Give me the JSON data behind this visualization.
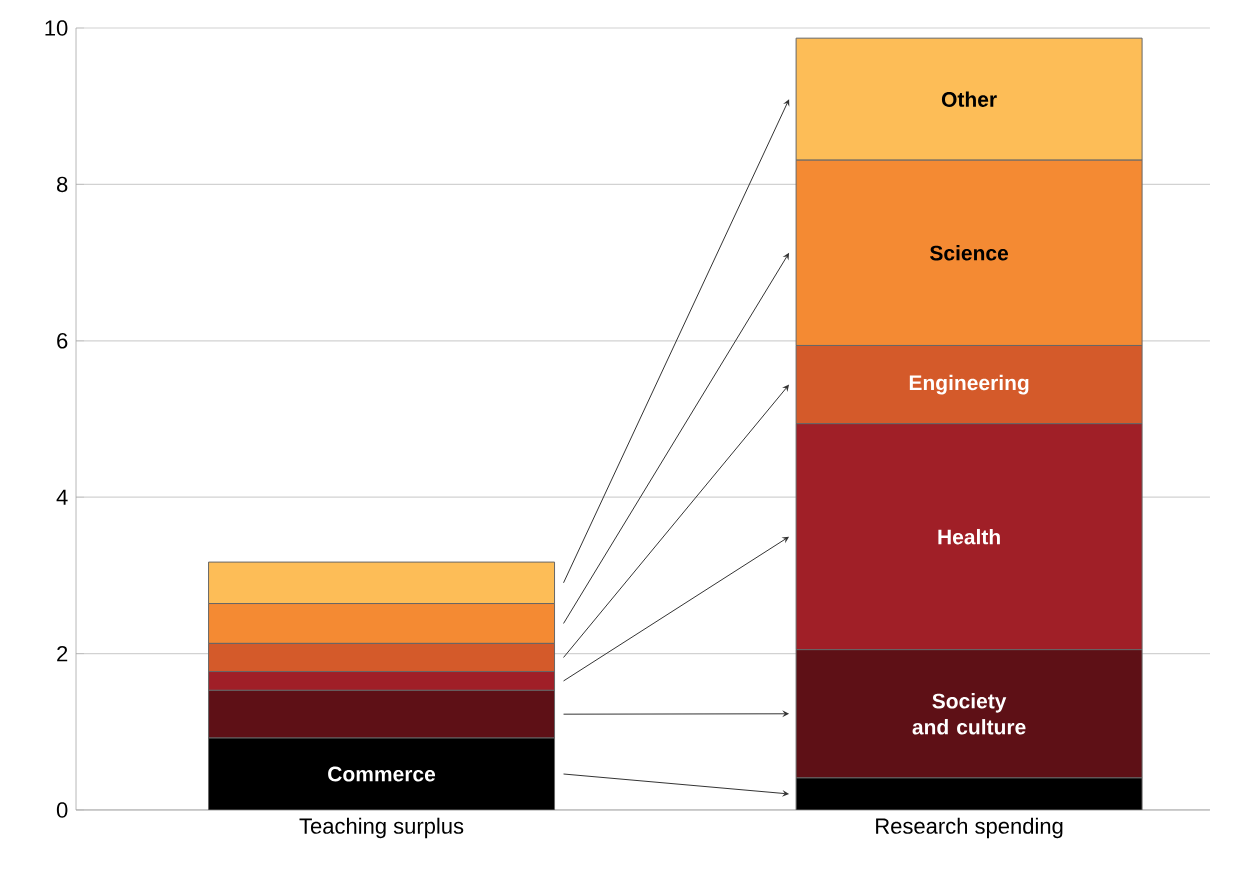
{
  "chart_data": {
    "type": "bar",
    "stacked": true,
    "categories": [
      "Teaching surplus",
      "Research spending"
    ],
    "series": [
      {
        "name": "Commerce",
        "color": "#000000",
        "values": [
          0.92,
          0.41
        ]
      },
      {
        "name": "Society and culture",
        "color": "#5e1016",
        "values": [
          0.61,
          1.64
        ]
      },
      {
        "name": "Health",
        "color": "#a01f27",
        "values": [
          0.24,
          2.89
        ]
      },
      {
        "name": "Engineering",
        "color": "#d45a2a",
        "values": [
          0.36,
          1.0
        ]
      },
      {
        "name": "Science",
        "color": "#f48a33",
        "values": [
          0.51,
          2.37
        ]
      },
      {
        "name": "Other",
        "color": "#fdbd57",
        "values": [
          0.53,
          1.56
        ]
      }
    ],
    "ylim": [
      0,
      10
    ],
    "yticks": [
      0,
      2,
      4,
      6,
      8,
      10
    ],
    "grid": "y"
  }
}
